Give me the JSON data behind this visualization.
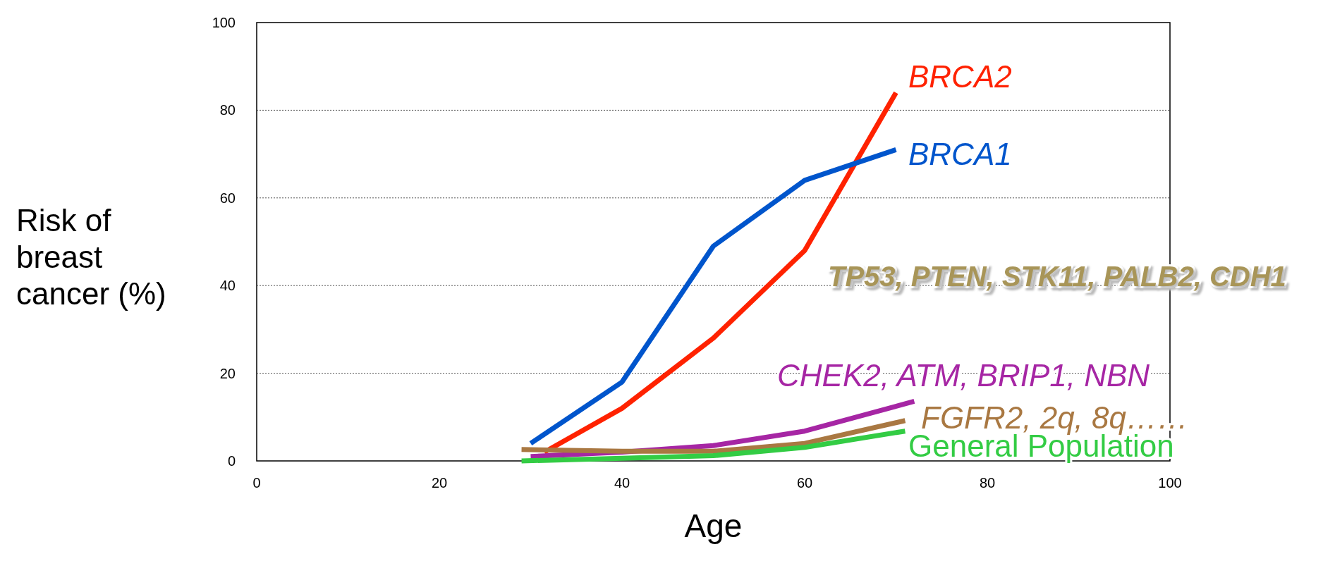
{
  "chart_data": {
    "type": "line",
    "xlabel": "Age",
    "ylabel": "Risk of breast cancer (%)",
    "xlim": [
      0,
      100
    ],
    "xticks": [
      0,
      20,
      40,
      60,
      80,
      100
    ],
    "ylim": [
      0,
      100
    ],
    "yticks": [
      0,
      20,
      40,
      60,
      80,
      100
    ],
    "grid": "y",
    "marker": "none",
    "line_style": "solid",
    "series": [
      {
        "name": "BRCA2",
        "color": "#ff2200",
        "x": [
          31.5,
          40,
          50,
          60,
          70
        ],
        "values": [
          2,
          12,
          28,
          48,
          84
        ]
      },
      {
        "name": "BRCA1",
        "color": "#0055cc",
        "x": [
          30,
          40,
          50,
          60,
          70
        ],
        "values": [
          4,
          18,
          49,
          64,
          71
        ]
      },
      {
        "name": "CHEK2, ATM, BRIP1, NBN",
        "color": "#a626a4",
        "x": [
          30,
          40,
          50,
          60,
          72
        ],
        "values": [
          1,
          2,
          3.5,
          6.8,
          13.6
        ]
      },
      {
        "name": "FGFR2, 2q, 8q……",
        "color": "#a97842",
        "x": [
          29,
          40,
          50,
          60,
          71
        ],
        "values": [
          2.6,
          2.2,
          2.2,
          4,
          9.2
        ]
      },
      {
        "name": "General Population",
        "color": "#33cc44",
        "x": [
          29,
          40,
          50,
          60,
          71
        ],
        "values": [
          0,
          0.6,
          1.2,
          3.1,
          6.8
        ]
      }
    ],
    "annotations": [
      "TP53, PTEN, STK11, PALB2, CDH1"
    ]
  }
}
